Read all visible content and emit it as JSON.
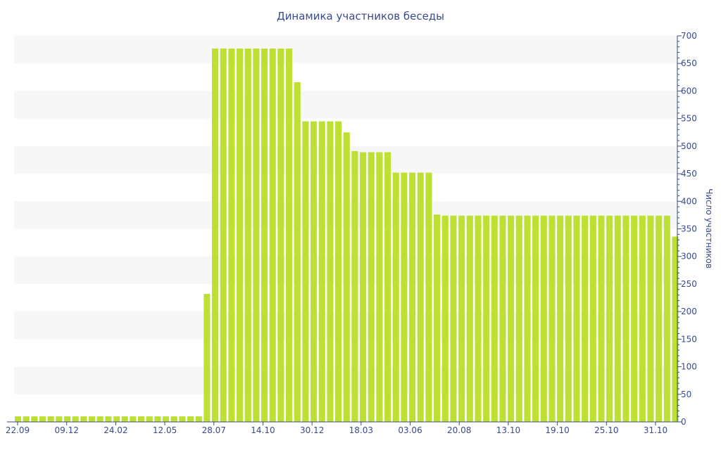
{
  "chart_data": {
    "type": "bar",
    "title": "Динамика участников беседы",
    "xlabel": "",
    "ylabel": "Число участников",
    "ylim": [
      0,
      700
    ],
    "y_ticks": [
      0,
      50,
      100,
      150,
      200,
      250,
      300,
      350,
      400,
      450,
      500,
      550,
      600,
      650,
      700
    ],
    "y_axis_position": "right",
    "x_tick_labels": [
      "22.09",
      "09.12",
      "24.02",
      "12.05",
      "28.07",
      "14.10",
      "30.12",
      "18.03",
      "03.06",
      "20.08",
      "13.10",
      "19.10",
      "25.10",
      "31.10"
    ],
    "bar_color": "#bde033",
    "band_color": "#f7f7f7",
    "axis_color": "#3a4a8a",
    "series": [
      {
        "values": [
          10,
          10,
          10,
          10,
          10,
          10,
          10,
          10,
          10,
          10,
          10,
          10,
          10,
          10,
          10,
          10,
          10,
          10,
          10,
          10,
          10,
          10,
          10,
          232,
          677,
          677,
          677,
          677,
          677,
          677,
          677,
          677,
          677,
          677,
          616,
          545,
          545,
          545,
          545,
          545,
          525,
          491,
          489,
          489,
          489,
          489,
          452,
          452,
          452,
          452,
          452,
          376,
          374,
          374,
          374,
          374,
          374,
          374,
          374,
          374,
          374,
          374,
          374,
          374,
          374,
          374,
          374,
          374,
          374,
          374,
          374,
          374,
          374,
          374,
          374,
          374,
          374,
          374,
          374,
          374,
          336
        ]
      }
    ]
  }
}
